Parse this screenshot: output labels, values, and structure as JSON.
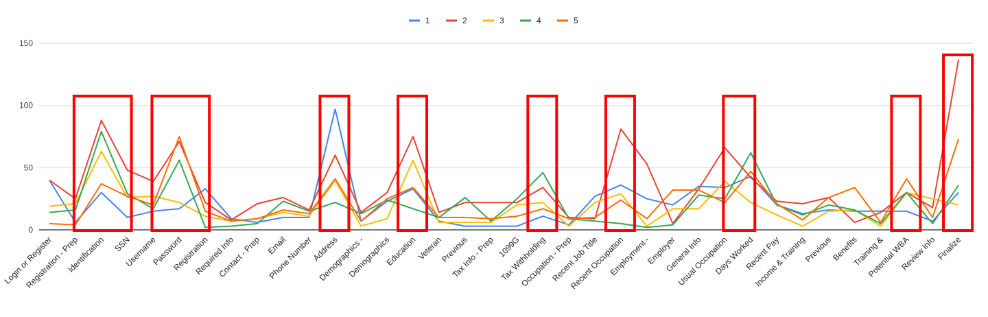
{
  "chart_data": {
    "type": "line",
    "title": "",
    "xlabel": "",
    "ylabel": "",
    "ylim": [
      0,
      150
    ],
    "yticks": [
      0,
      50,
      100,
      150
    ],
    "grid": true,
    "legend_placement": "top-center",
    "categories": [
      "Login or Register",
      "Registration - Prep",
      "Identification",
      "SSN",
      "Username",
      "Password",
      "Registration",
      "Required Info",
      "Contact - Prep",
      "Email",
      "Phone Number",
      "Address",
      "Demographics -",
      "Demographics",
      "Education",
      "Veteran",
      "Previous",
      "Tax Info - Prep",
      "1099G",
      "Tax Withholding",
      "Occupation - Prep",
      "Recent Job Title",
      "Recent Occupation",
      "Employment -",
      "Employer",
      "General Info",
      "Usual Occupation",
      "Days Worked",
      "Recent Pay",
      "Income & Training",
      "Previous",
      "Benefits",
      "Training &",
      "Potential WBA",
      "Review Info",
      "Finalize"
    ],
    "series": [
      {
        "name": "1",
        "color": "#4285f4",
        "values": [
          40,
          6,
          30,
          10,
          15,
          17,
          33,
          9,
          6,
          10,
          10,
          97,
          7,
          23,
          33,
          7,
          3,
          3,
          3,
          11,
          4,
          27,
          36,
          25,
          20,
          35,
          34,
          43,
          20,
          13,
          16,
          15,
          15,
          15,
          7,
          30
        ]
      },
      {
        "name": "2",
        "color": "#ea4335",
        "values": [
          40,
          25,
          88,
          48,
          39,
          71,
          22,
          8,
          21,
          26,
          16,
          60,
          14,
          30,
          75,
          14,
          22,
          22,
          22,
          34,
          10,
          9,
          81,
          53,
          5,
          33,
          66,
          42,
          23,
          21,
          26,
          6,
          14,
          30,
          18,
          137
        ]
      },
      {
        "name": "3",
        "color": "#fbbc04",
        "values": [
          19,
          21,
          63,
          26,
          27,
          22,
          11,
          7,
          9,
          14,
          11,
          40,
          3,
          9,
          56,
          6,
          6,
          6,
          20,
          22,
          3,
          22,
          29,
          3,
          17,
          17,
          39,
          22,
          12,
          3,
          15,
          16,
          3,
          30,
          25,
          20
        ]
      },
      {
        "name": "4",
        "color": "#34a853",
        "values": [
          14,
          16,
          79,
          29,
          17,
          56,
          2,
          3,
          5,
          23,
          15,
          22,
          13,
          24,
          17,
          10,
          26,
          7,
          25,
          46,
          9,
          7,
          5,
          2,
          4,
          28,
          25,
          62,
          20,
          12,
          20,
          16,
          5,
          30,
          5,
          36
        ]
      },
      {
        "name": "5",
        "color": "#ff6d01",
        "values": [
          5,
          4,
          37,
          27,
          20,
          75,
          15,
          7,
          9,
          16,
          13,
          41,
          7,
          25,
          34,
          10,
          10,
          9,
          11,
          17,
          9,
          10,
          24,
          9,
          32,
          32,
          22,
          47,
          21,
          8,
          26,
          34,
          6,
          41,
          10,
          73
        ]
      }
    ],
    "highlight_boxes": [
      {
        "from": "Registration - Prep",
        "to": "SSN"
      },
      {
        "from": "Username",
        "to": "Registration"
      },
      {
        "from": "Address",
        "to": "Address"
      },
      {
        "from": "Education",
        "to": "Education"
      },
      {
        "from": "Tax Withholding",
        "to": "Tax Withholding"
      },
      {
        "from": "Recent Occupation",
        "to": "Recent Occupation"
      },
      {
        "from": "Usual Occupation",
        "to": "Days Worked"
      },
      {
        "from": "Potential WBA",
        "to": "Potential WBA"
      },
      {
        "from": "Finalize",
        "to": "Finalize"
      }
    ],
    "highlight_color": "#ff0000"
  }
}
